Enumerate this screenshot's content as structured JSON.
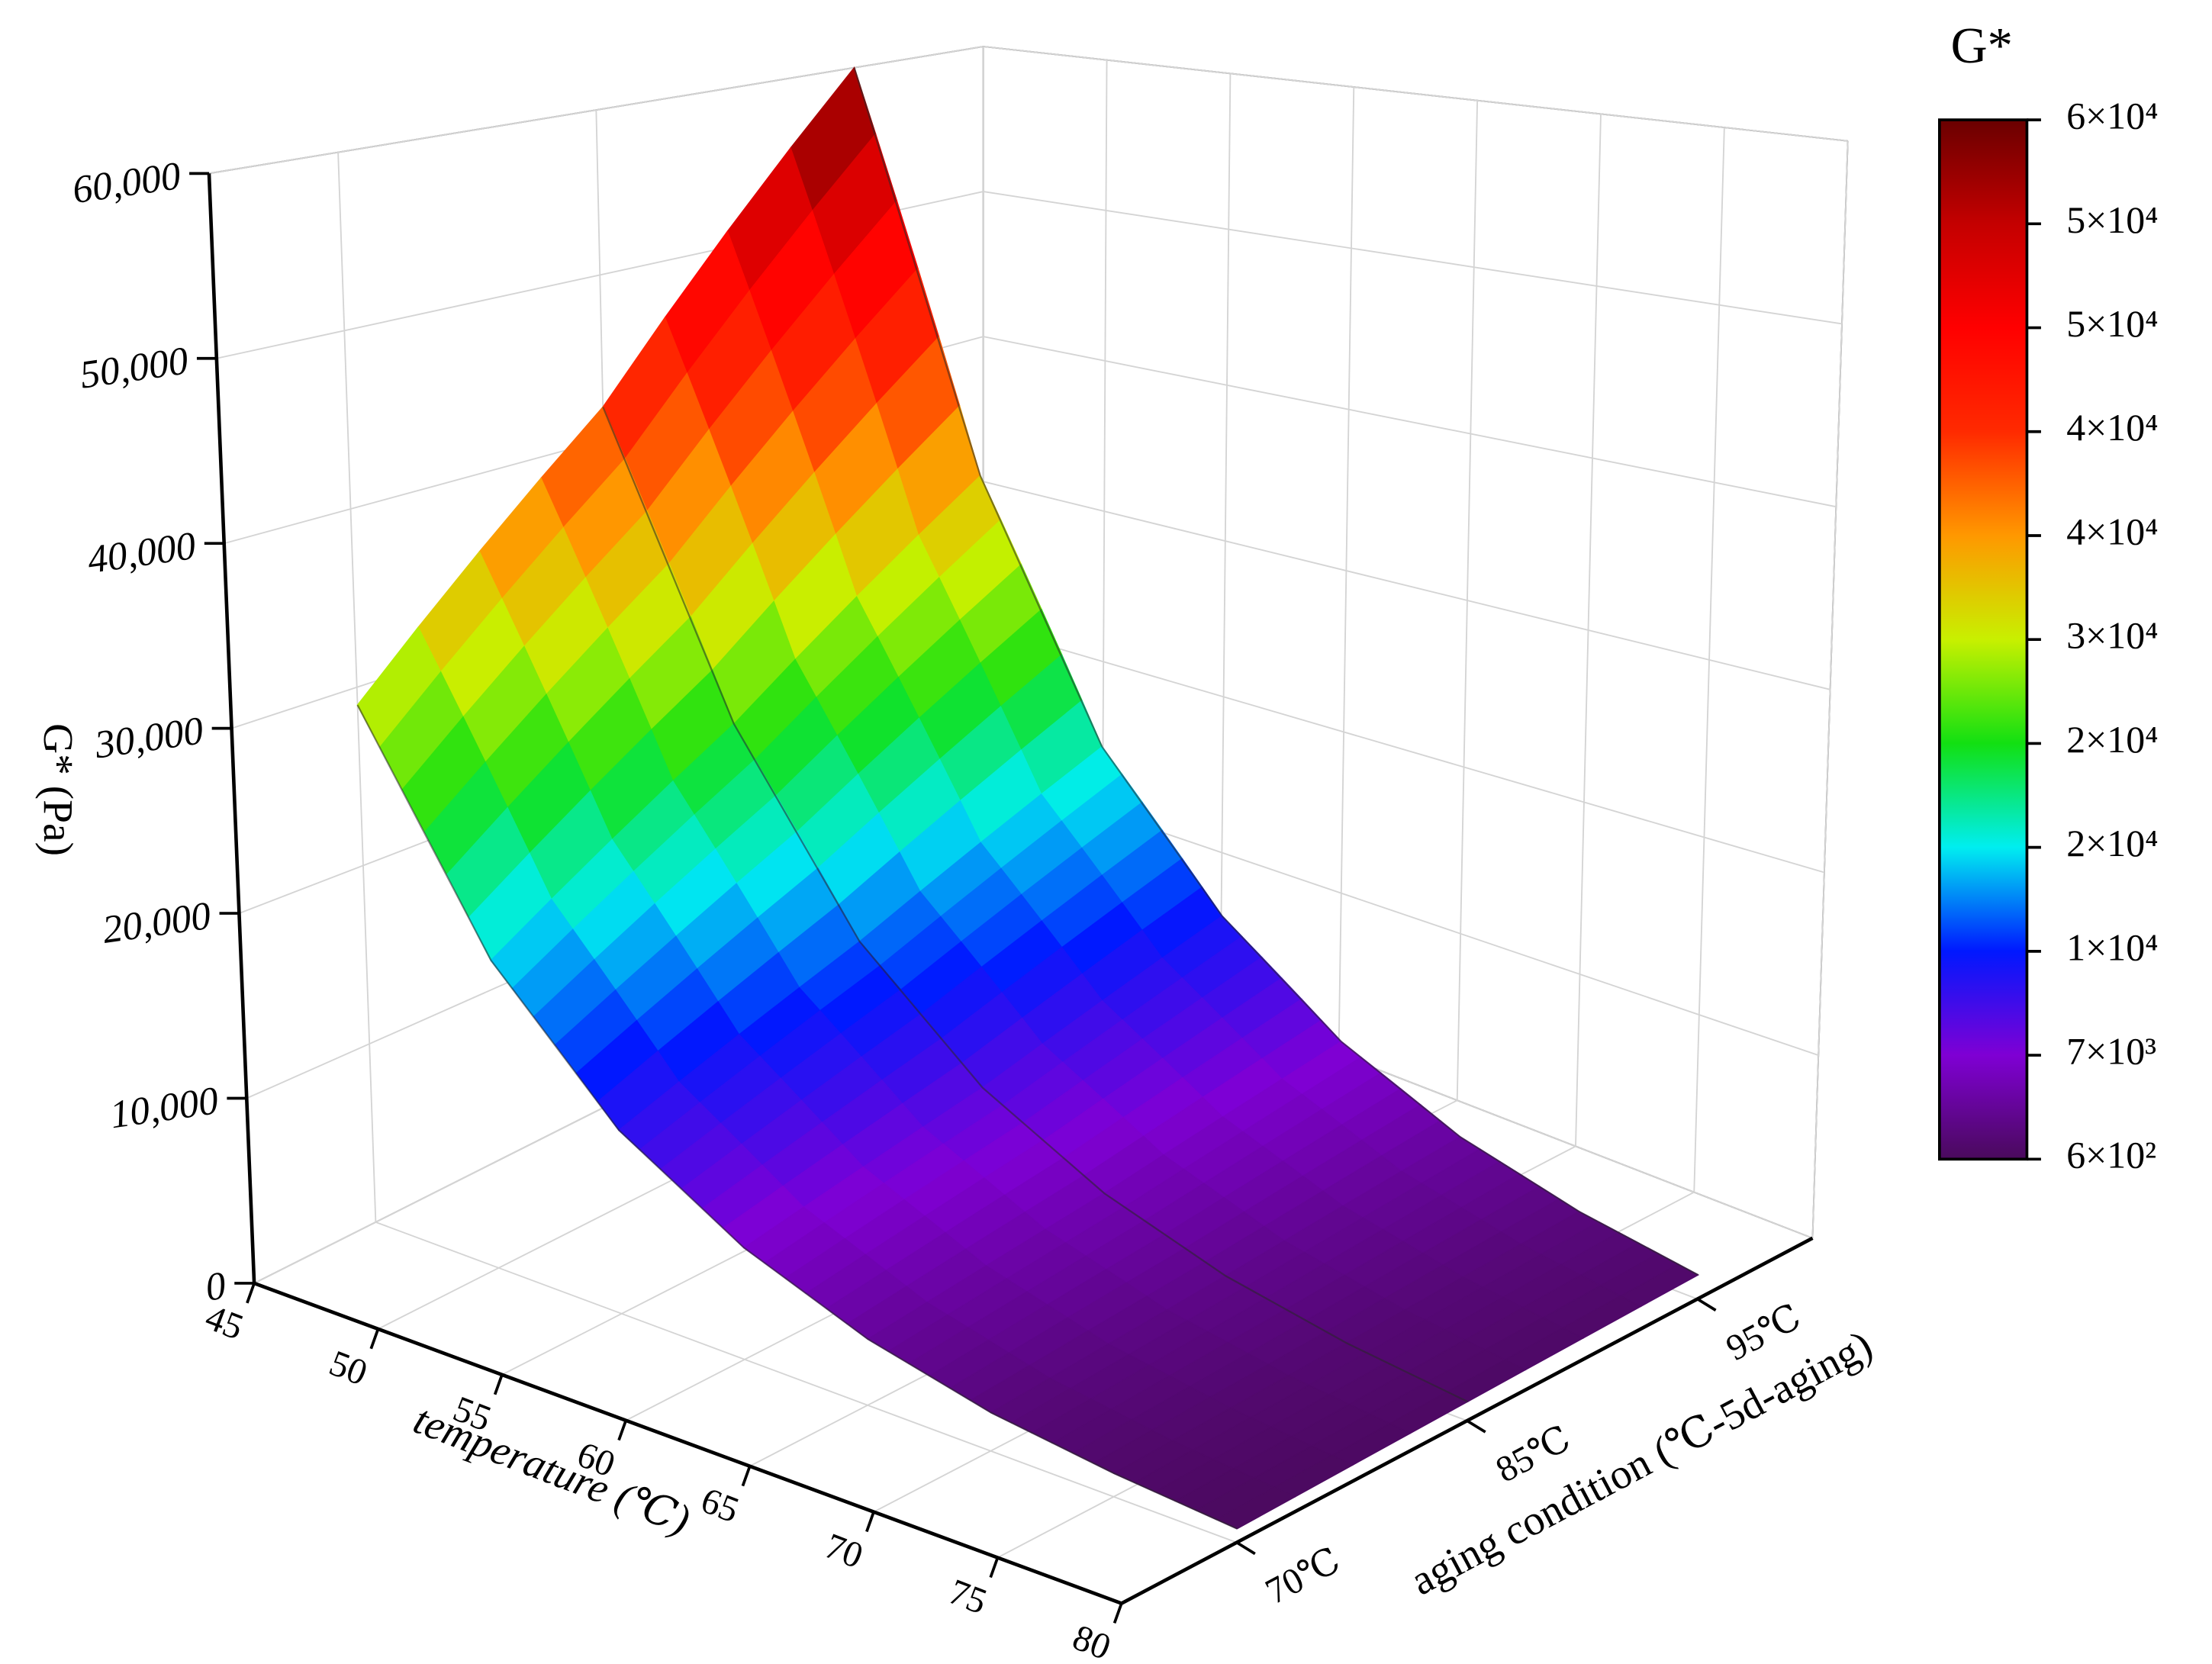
{
  "chart_data": {
    "type": "surface3d",
    "zlabel": "G* (Pa)",
    "xlabel": "temperature (℃)",
    "ylabel": "aging condition (℃-5d-aging)",
    "x": [
      45,
      50,
      55,
      60,
      65,
      70,
      75,
      80
    ],
    "categories": [
      "70℃",
      "85℃",
      "95℃"
    ],
    "z": [
      [
        29000,
        17000,
        10000,
        6000,
        3500,
        2000,
        1200,
        700
      ],
      [
        42000,
        25000,
        14500,
        8500,
        5000,
        2900,
        1700,
        1000
      ],
      [
        60000,
        35000,
        20000,
        12000,
        7000,
        4000,
        2300,
        1300
      ]
    ],
    "xlim": [
      45,
      80
    ],
    "xticks": [
      45,
      50,
      55,
      60,
      65,
      70,
      75,
      80
    ],
    "zlim": [
      0,
      60000
    ],
    "zticks": [
      0,
      {
        "value": 10000,
        "label": "10,000"
      },
      {
        "value": 20000,
        "label": "20,000"
      },
      {
        "value": 30000,
        "label": "30,000"
      },
      {
        "value": 40000,
        "label": "40,000"
      },
      {
        "value": 50000,
        "label": "50,000"
      },
      {
        "value": 60000,
        "label": "60,000"
      }
    ],
    "grid": true,
    "colorbar": {
      "title": "G*",
      "ticks": [
        {
          "value": 600,
          "label": "6×10²"
        },
        {
          "value": 6540,
          "label": "7×10³"
        },
        {
          "value": 12480,
          "label": "1×10⁴"
        },
        {
          "value": 18420,
          "label": "2×10⁴"
        },
        {
          "value": 24360,
          "label": "2×10⁴"
        },
        {
          "value": 30300,
          "label": "3×10⁴"
        },
        {
          "value": 36240,
          "label": "4×10⁴"
        },
        {
          "value": 42180,
          "label": "4×10⁴"
        },
        {
          "value": 48120,
          "label": "5×10⁴"
        },
        {
          "value": 54060,
          "label": "5×10⁴"
        },
        {
          "value": 60000,
          "label": "6×10⁴"
        }
      ],
      "colors": [
        "#4a0a5c",
        "#7f00d4",
        "#0018ff",
        "#00eef0",
        "#12e012",
        "#c8f000",
        "#ff9800",
        "#ff2a00",
        "#ff0000",
        "#c40000",
        "#6a0000"
      ]
    }
  }
}
